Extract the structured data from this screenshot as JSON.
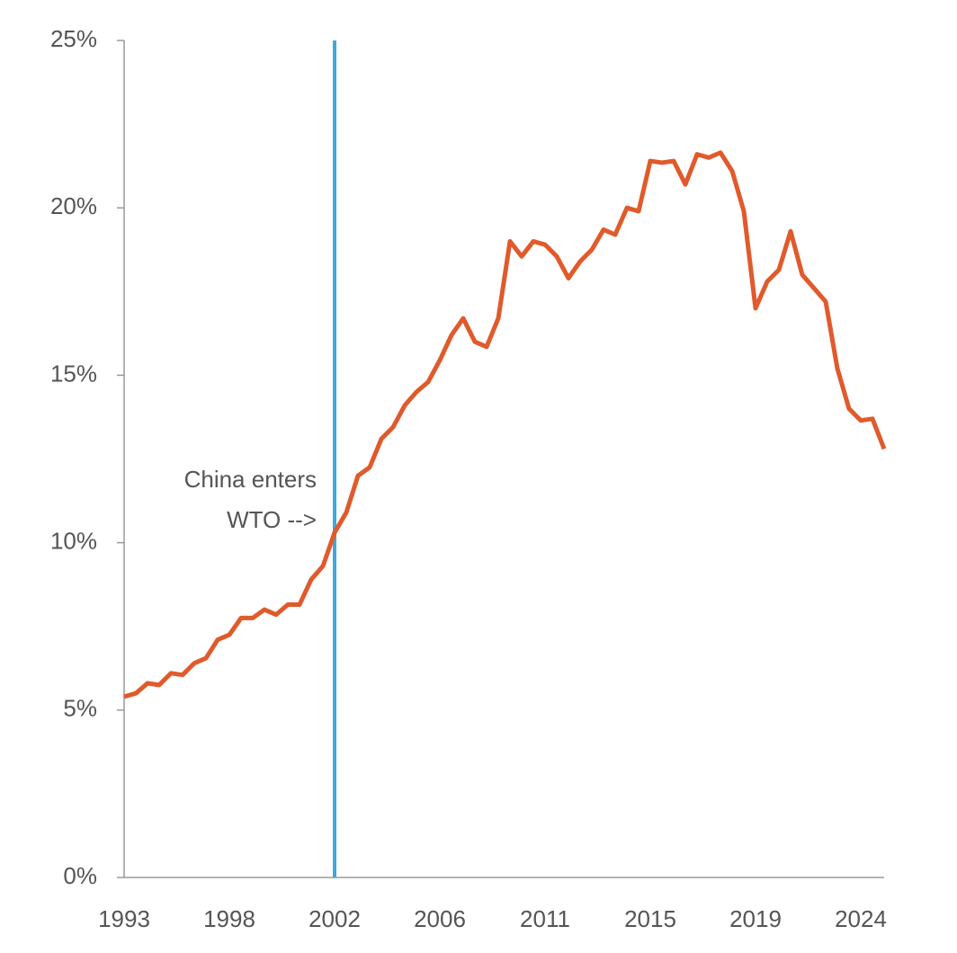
{
  "chart_data": {
    "type": "line",
    "categories": [
      "1993",
      null,
      null,
      null,
      null,
      null,
      null,
      null,
      null,
      "1998",
      null,
      null,
      null,
      null,
      null,
      null,
      null,
      null,
      "2002",
      null,
      null,
      null,
      null,
      null,
      null,
      null,
      null,
      "2006",
      null,
      null,
      null,
      null,
      null,
      null,
      null,
      null,
      "2011",
      null,
      null,
      null,
      null,
      null,
      null,
      null,
      null,
      "2015",
      null,
      null,
      null,
      null,
      null,
      null,
      null,
      null,
      "2019",
      null,
      null,
      null,
      null,
      null,
      null,
      null,
      null,
      "2024",
      null,
      null
    ],
    "series": [
      {
        "color": "#e05a2b",
        "values": [
          5.4,
          5.5,
          5.8,
          5.75,
          6.1,
          6.05,
          6.4,
          6.55,
          7.1,
          7.25,
          7.75,
          7.75,
          8.0,
          7.85,
          8.15,
          8.15,
          8.9,
          9.3,
          10.3,
          10.9,
          12.0,
          12.25,
          13.1,
          13.45,
          14.1,
          14.5,
          14.8,
          15.45,
          16.2,
          16.7,
          16.0,
          15.85,
          16.7,
          19.0,
          18.55,
          19.0,
          18.9,
          18.55,
          17.9,
          18.4,
          18.75,
          19.35,
          19.2,
          20.0,
          19.9,
          21.4,
          21.35,
          21.4,
          20.7,
          21.6,
          21.5,
          21.65,
          21.1,
          19.9,
          17.0,
          17.8,
          18.15,
          19.3,
          18.0,
          17.6,
          17.2,
          15.2,
          14.0,
          13.65,
          13.7,
          12.8
        ]
      }
    ],
    "ylim": [
      0,
      25
    ],
    "yticks": [
      {
        "value": 0,
        "label": "0%"
      },
      {
        "value": 5,
        "label": "5%"
      },
      {
        "value": 10,
        "label": "10%"
      },
      {
        "value": 15,
        "label": "15%"
      },
      {
        "value": 20,
        "label": "20%"
      },
      {
        "value": 25,
        "label": "25%"
      }
    ],
    "annotation": {
      "lines": [
        "China enters",
        "WTO -->"
      ],
      "at": "2002",
      "color": "#3fa9dc"
    }
  }
}
